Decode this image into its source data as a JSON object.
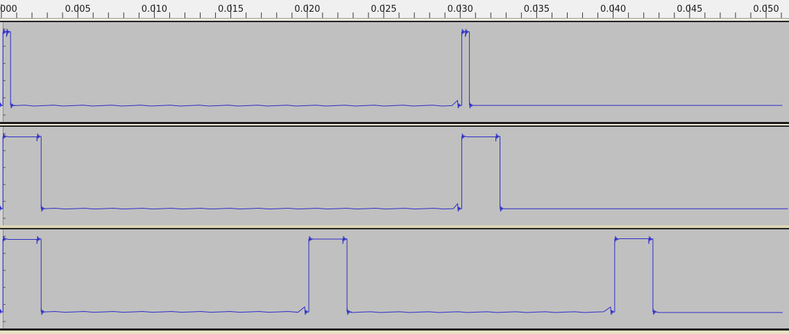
{
  "timeline": {
    "tick_labels": [
      "000",
      "0.005",
      "0.010",
      "0.015",
      "0.020",
      "0.025",
      "0.030",
      "0.035",
      "0.040",
      "0.045",
      "0.050"
    ]
  },
  "colors": {
    "waveform": "#2b2bc8",
    "track_background": "#c0c0c0"
  },
  "chart_data": {
    "type": "line",
    "x_unit_ticks": [
      "000",
      "0.005",
      "0.010",
      "0.015",
      "0.020",
      "0.025",
      "0.030",
      "0.035",
      "0.040",
      "0.045",
      "0.050"
    ],
    "xlim": [
      0.0,
      0.0513
    ],
    "tracks": [
      {
        "pulses": [
          [
            0.0001,
            0.0006
          ],
          [
            0.0301,
            0.0306
          ]
        ]
      },
      {
        "pulses": [
          [
            0.0001,
            0.0026
          ],
          [
            0.0301,
            0.0326
          ]
        ]
      },
      {
        "pulses": [
          [
            0.0001,
            0.0026
          ],
          [
            0.0201,
            0.0226
          ],
          [
            0.0401,
            0.0426
          ]
        ]
      }
    ]
  }
}
